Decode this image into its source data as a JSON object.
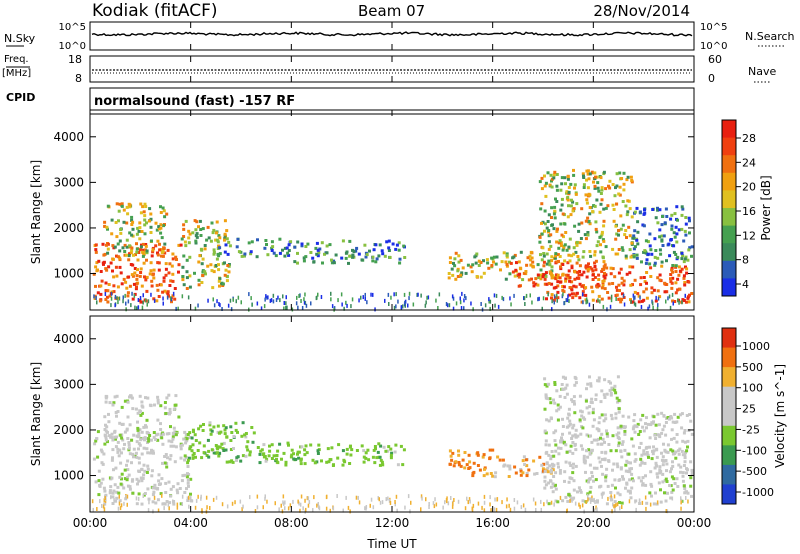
{
  "header": {
    "station": "Kodiak (fitACF)",
    "beam": "Beam 07",
    "date": "28/Nov/2014"
  },
  "panels": {
    "nsky": {
      "label": "N.Sky",
      "right_label": "N.Search",
      "ticks_left": [
        "10^5",
        "10^0"
      ],
      "ticks_right": [
        "10^5",
        "10^0"
      ]
    },
    "freq": {
      "label_top": "Freq.",
      "label_bottom": "[MHz]",
      "ticks_left": [
        "18",
        "8"
      ],
      "ticks_right": [
        "60",
        "0"
      ],
      "right_label": "Nave"
    },
    "cpid": {
      "label": "CPID",
      "text": "normalsound (fast) -157 RF"
    }
  },
  "colorbars": {
    "power": {
      "label": "Power [dB]",
      "ticks": [
        "28",
        "24",
        "20",
        "16",
        "12",
        "8",
        "4"
      ],
      "colors": [
        "#1a2ee6",
        "#2b5bb8",
        "#3a8a5a",
        "#45a050",
        "#88c040",
        "#e0c020",
        "#f0a010",
        "#f07010",
        "#f04010",
        "#e82010"
      ]
    },
    "velocity": {
      "label": "Velocity [m s^-1]",
      "ticks": [
        "1000",
        "500",
        "100",
        "25",
        "-25",
        "-100",
        "-500",
        "-1000"
      ],
      "colors": [
        "#2040d0",
        "#2f6aa0",
        "#3a9a50",
        "#7ac830",
        "#c8c8c8",
        "#c8c8c8",
        "#f0b030",
        "#f07010",
        "#e03010"
      ]
    }
  },
  "chart_data": [
    {
      "type": "heatmap",
      "name": "Power",
      "ylabel": "Slant Range [km]",
      "ylim": [
        200,
        4500
      ],
      "yticks": [
        1000,
        2000,
        3000,
        4000
      ],
      "xlim": [
        0,
        24
      ],
      "regions": [
        {
          "t0": 0.1,
          "t1": 3.6,
          "r0": 400,
          "r1": 1700,
          "level": "high"
        },
        {
          "t0": 0.5,
          "t1": 3.0,
          "r0": 1400,
          "r1": 2600,
          "level": "mid"
        },
        {
          "t0": 3.6,
          "t1": 5.5,
          "r0": 700,
          "r1": 2200,
          "level": "mid"
        },
        {
          "t0": 5.0,
          "t1": 8.0,
          "r0": 1400,
          "r1": 1800,
          "level": "low"
        },
        {
          "t0": 8.0,
          "t1": 12.5,
          "r0": 1250,
          "r1": 1750,
          "level": "low"
        },
        {
          "t0": 14.2,
          "t1": 18.5,
          "r0": 900,
          "r1": 1500,
          "level": "mid"
        },
        {
          "t0": 16.5,
          "t1": 20.5,
          "r0": 700,
          "r1": 1300,
          "level": "high"
        },
        {
          "t0": 18.0,
          "t1": 23.9,
          "r0": 400,
          "r1": 1200,
          "level": "high"
        },
        {
          "t0": 17.8,
          "t1": 21.5,
          "r0": 1300,
          "r1": 3300,
          "level": "mid"
        },
        {
          "t0": 21.5,
          "t1": 23.9,
          "r0": 1200,
          "r1": 2500,
          "level": "low"
        }
      ]
    },
    {
      "type": "heatmap",
      "name": "Velocity",
      "xlabel": "Time UT",
      "ylabel": "Slant Range [km]",
      "ylim": [
        200,
        4500
      ],
      "yticks": [
        1000,
        2000,
        3000,
        4000
      ],
      "xlim": [
        0,
        24
      ],
      "xticks": [
        "00:00",
        "04:00",
        "08:00",
        "12:00",
        "16:00",
        "20:00",
        "00:00"
      ],
      "regions": [
        {
          "t0": 0.1,
          "t1": 4.0,
          "r0": 400,
          "r1": 2000,
          "level": "grey"
        },
        {
          "t0": 0.5,
          "t1": 3.5,
          "r0": 1800,
          "r1": 2800,
          "level": "grey"
        },
        {
          "t0": 3.8,
          "t1": 6.5,
          "r0": 1300,
          "r1": 2200,
          "level": "green"
        },
        {
          "t0": 6.5,
          "t1": 12.5,
          "r0": 1250,
          "r1": 1750,
          "level": "green"
        },
        {
          "t0": 14.2,
          "t1": 16.0,
          "r0": 1000,
          "r1": 1600,
          "level": "orange"
        },
        {
          "t0": 16.0,
          "t1": 18.5,
          "r0": 1000,
          "r1": 1450,
          "level": "mixed"
        },
        {
          "t0": 18.0,
          "t1": 23.9,
          "r0": 400,
          "r1": 1600,
          "level": "grey"
        },
        {
          "t0": 18.0,
          "t1": 21.0,
          "r0": 1500,
          "r1": 3200,
          "level": "grey"
        },
        {
          "t0": 21.0,
          "t1": 23.9,
          "r0": 1500,
          "r1": 2400,
          "level": "grey"
        }
      ]
    }
  ]
}
